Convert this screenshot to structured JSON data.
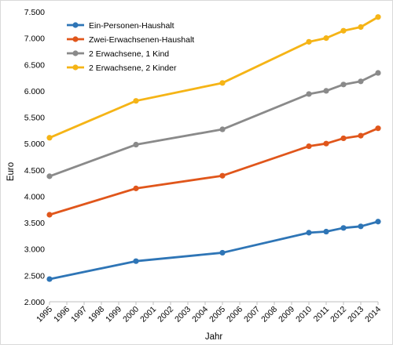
{
  "chart_data": {
    "type": "line",
    "title": "",
    "xlabel": "Jahr",
    "ylabel": "Euro",
    "categories": [
      "1995",
      "1996",
      "1997",
      "1998",
      "1999",
      "2000",
      "2001",
      "2002",
      "2003",
      "2004",
      "2005",
      "2006",
      "2007",
      "2008",
      "2009",
      "2010",
      "2011",
      "2012",
      "2013",
      "2014"
    ],
    "ylim": [
      2000,
      7500
    ],
    "ytick_values": [
      2000,
      2500,
      3000,
      3500,
      4000,
      4500,
      5000,
      5500,
      6000,
      6500,
      7000,
      7500
    ],
    "ytick_labels": [
      "2.000",
      "2.500",
      "3.000",
      "3.500",
      "4.000",
      "4.500",
      "5.000",
      "5.500",
      "6.000",
      "6.500",
      "7.000",
      "7.500"
    ],
    "grid": false,
    "legend_position": "top-left",
    "series": [
      {
        "name": "Ein-Personen-Haushalt",
        "color": "#2e75b6",
        "points": [
          [
            "1995",
            2430
          ],
          [
            "2000",
            2770
          ],
          [
            "2005",
            2930
          ],
          [
            "2010",
            3310
          ],
          [
            "2011",
            3330
          ],
          [
            "2012",
            3400
          ],
          [
            "2013",
            3430
          ],
          [
            "2014",
            3520
          ]
        ]
      },
      {
        "name": "Zwei-Erwachsenen-Haushalt",
        "color": "#e0561b",
        "points": [
          [
            "1995",
            3650
          ],
          [
            "2000",
            4150
          ],
          [
            "2005",
            4390
          ],
          [
            "2010",
            4950
          ],
          [
            "2011",
            5000
          ],
          [
            "2012",
            5100
          ],
          [
            "2013",
            5150
          ],
          [
            "2014",
            5290
          ]
        ]
      },
      {
        "name": "2 Erwachsene, 1 Kind",
        "color": "#8a8a8a",
        "points": [
          [
            "1995",
            4380
          ],
          [
            "2000",
            4980
          ],
          [
            "2005",
            5270
          ],
          [
            "2010",
            5940
          ],
          [
            "2011",
            6000
          ],
          [
            "2012",
            6120
          ],
          [
            "2013",
            6180
          ],
          [
            "2014",
            6340
          ]
        ]
      },
      {
        "name": "2 Erwachsene, 2 Kinder",
        "color": "#f5b416",
        "points": [
          [
            "1995",
            5110
          ],
          [
            "2000",
            5810
          ],
          [
            "2005",
            6150
          ],
          [
            "2010",
            6930
          ],
          [
            "2011",
            7000
          ],
          [
            "2012",
            7140
          ],
          [
            "2013",
            7210
          ],
          [
            "2014",
            7400
          ]
        ]
      }
    ]
  }
}
